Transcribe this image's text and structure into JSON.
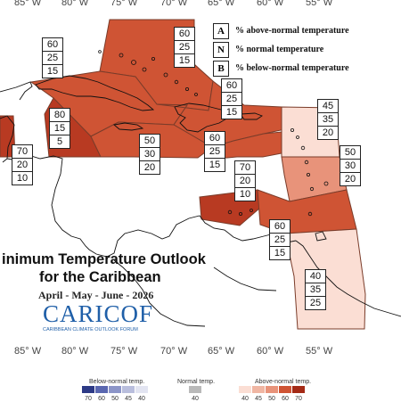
{
  "map": {
    "lon_ticks_top": [
      "85° W",
      "80° W",
      "75° W",
      "70° W",
      "65° W",
      "60° W",
      "55° W"
    ],
    "lon_ticks_bottom": [
      "85° W",
      "80° W",
      "75° W",
      "70° W",
      "65° W",
      "60° W",
      "55° W"
    ],
    "colors": {
      "dark": "#b83a22",
      "medium": "#cf5434",
      "light": "#e8937a",
      "pale": "#fbded4",
      "coast": "#111111"
    }
  },
  "regions": [
    {
      "id": "bahamas",
      "a": "60",
      "n": "25",
      "b": "15",
      "color": "#cf5434"
    },
    {
      "id": "cuba-jamaica-hispaniola",
      "a": "60",
      "n": "25",
      "b": "15",
      "color": "#cf5434"
    },
    {
      "id": "western-caribbean-jamaica",
      "a": "80",
      "n": "15",
      "b": "5",
      "color": "#b83a22"
    },
    {
      "id": "belize",
      "a": "70",
      "n": "20",
      "b": "10",
      "color": "#b83a22"
    },
    {
      "id": "hispaniola-puerto-rico",
      "a": "60",
      "n": "25",
      "b": "15",
      "color": "#cf5434"
    },
    {
      "id": "central-caribbean",
      "a": "50",
      "n": "30",
      "b": "20",
      "color": "#cf5434"
    },
    {
      "id": "eastern-caribbean-north",
      "a": "60",
      "n": "25",
      "b": "15",
      "color": "#cf5434"
    },
    {
      "id": "leeward-islands",
      "a": "45",
      "n": "35",
      "b": "20",
      "color": "#fbded4"
    },
    {
      "id": "windward-islands",
      "a": "50",
      "n": "30",
      "b": "20",
      "color": "#e8937a"
    },
    {
      "id": "abc-islands",
      "a": "70",
      "n": "20",
      "b": "10",
      "color": "#b83a22"
    },
    {
      "id": "trinidad-tobago",
      "a": "60",
      "n": "25",
      "b": "15",
      "color": "#cf5434"
    },
    {
      "id": "guianas",
      "a": "40",
      "n": "35",
      "b": "25",
      "color": "#fbded4"
    }
  ],
  "legend_key": {
    "rows": [
      {
        "letter": "A",
        "text": "% above-normal temperature"
      },
      {
        "letter": "N",
        "text": "% normal temperature"
      },
      {
        "letter": "B",
        "text": "% below-normal temperature"
      }
    ]
  },
  "title": {
    "line1": "inimum Temperature Outlook",
    "line2": "for the Caribbean",
    "season": "April - May - June - 2026"
  },
  "logo": {
    "main": "CARICOF",
    "sub": "CARIBBEAN CLIMATE OUTLOOK FORUM"
  },
  "scale": {
    "below_label": "Below-normal temp.",
    "normal_label": "Normal temp.",
    "above_label": "Above-normal temp.",
    "below_ticks": [
      "70",
      "60",
      "50",
      "45",
      "40"
    ],
    "normal_ticks": [
      "40"
    ],
    "above_ticks": [
      "40",
      "45",
      "50",
      "60",
      "70"
    ],
    "below_colors": [
      "#2d3a86",
      "#5a67b0",
      "#8c95c8",
      "#b9bedd",
      "#e2e4f1"
    ],
    "normal_color": "#b9b9b9",
    "above_colors": [
      "#fbded4",
      "#f0b6a3",
      "#e8937a",
      "#cf5434",
      "#a42a16"
    ]
  }
}
